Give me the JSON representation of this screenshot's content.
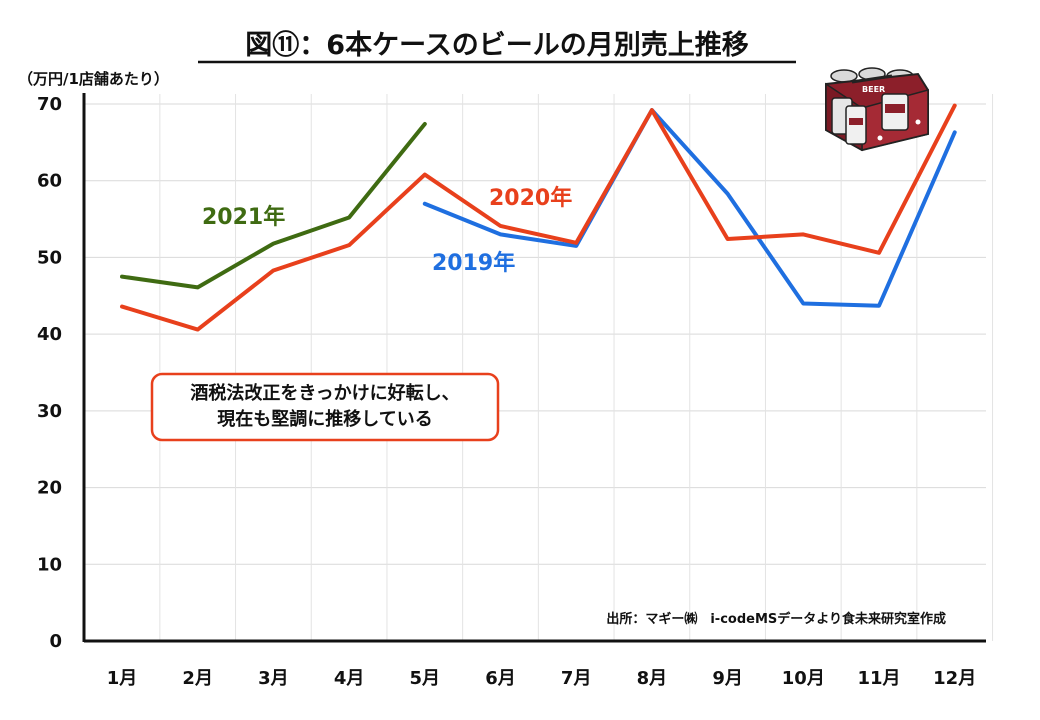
{
  "chart_data": {
    "type": "line",
    "title": "図⑪：6本ケースのビールの月別売上推移",
    "ylabel": "（万円/1店舗あたり）",
    "categories": [
      "1月",
      "2月",
      "3月",
      "4月",
      "5月",
      "6月",
      "7月",
      "8月",
      "9月",
      "10月",
      "11月",
      "12月"
    ],
    "ylim": [
      0,
      70
    ],
    "yticks": [
      0,
      10,
      20,
      30,
      40,
      50,
      60,
      70
    ],
    "grid": true,
    "series": [
      {
        "name": "2019年",
        "color": "#1f6fe0",
        "values": [
          null,
          null,
          null,
          null,
          57.0,
          53.0,
          51.5,
          69.2,
          58.3,
          44.0,
          43.7,
          66.3
        ]
      },
      {
        "name": "2020年",
        "color": "#e8401c",
        "values": [
          43.6,
          40.6,
          48.3,
          51.6,
          60.8,
          54.1,
          51.9,
          69.2,
          52.4,
          53.0,
          50.6,
          69.8
        ]
      },
      {
        "name": "2021年",
        "color": "#3f6b12",
        "values": [
          47.5,
          46.1,
          51.8,
          55.2,
          67.4,
          null,
          null,
          null,
          null,
          null,
          null,
          null
        ]
      }
    ],
    "annotation": [
      "酒税法改正をきっかけに好転し、",
      "現在も堅調に推移している"
    ],
    "source": "出所：マギー㈱　i-codeMSデータより食未来研究室作成"
  },
  "icon": "beer-six-pack-icon"
}
